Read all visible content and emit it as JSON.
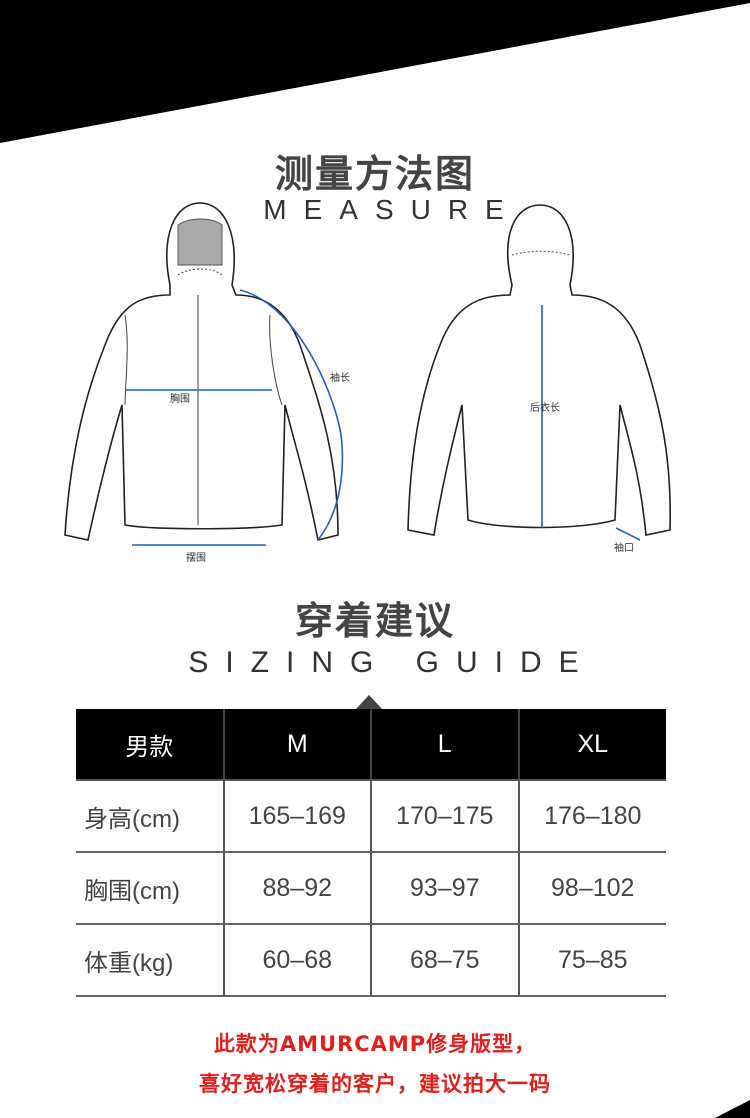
{
  "measure": {
    "title_cn": "测量方法图",
    "title_en": "MEASURE",
    "labels": {
      "sleeve_length": "袖长",
      "chest": "胸围",
      "hem": "摆围",
      "back_length": "后衣长",
      "cuff": "袖口"
    },
    "arrow_color": "#1f5fbf"
  },
  "sizing": {
    "title_cn": "穿着建议",
    "title_en": "SIZING GUIDE",
    "header": [
      "男款",
      "M",
      "L",
      "XL"
    ],
    "rows": [
      [
        "身高(cm)",
        "165–169",
        "170–175",
        "176–180"
      ],
      [
        "胸围(cm)",
        "88–92",
        "93–97",
        "98–102"
      ],
      [
        "体重(kg)",
        "60–68",
        "68–75",
        "75–85"
      ]
    ]
  },
  "note": {
    "line1": "此款为AMURCAMP修身版型，",
    "line2": "喜好宽松穿着的客户，建议拍大一码",
    "color": "#e0201a"
  }
}
